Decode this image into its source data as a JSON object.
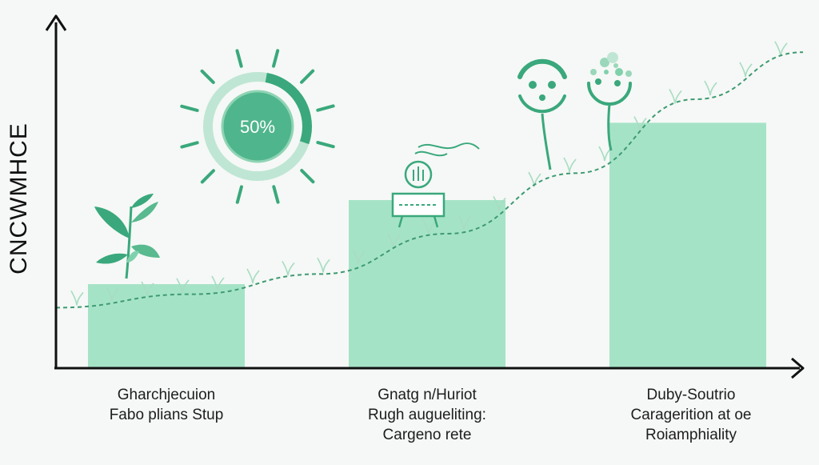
{
  "chart_data": {
    "type": "bar",
    "ylabel": "CNCWMHCE",
    "xlabel": "",
    "categories": [
      [
        "Gharchjecuion",
        "Fabo plians Stup"
      ],
      [
        "Gnatg n/Huriot",
        "Rugh augueliting:",
        "Cargeno rete"
      ],
      [
        "Duby-Soutrio",
        "Caragerition at oe",
        "Roiamphiality"
      ]
    ],
    "values": [
      25,
      50,
      73
    ],
    "trend": [
      18,
      22,
      28,
      40,
      58,
      80,
      94
    ],
    "ylim": [
      0,
      100
    ],
    "gauge": {
      "label": "50%",
      "value": 0.5
    },
    "colors": {
      "bar": "#a5e3c7",
      "accent": "#3aa87c",
      "accent_light": "#7fd1ac",
      "axis": "#111111",
      "line": "#3e9a72"
    },
    "icons": [
      "leaf-plant-icon",
      "sun-gauge-icon",
      "lightbulb-signboard-icon",
      "face-tree-icon",
      "dandelion-face-icon"
    ]
  }
}
